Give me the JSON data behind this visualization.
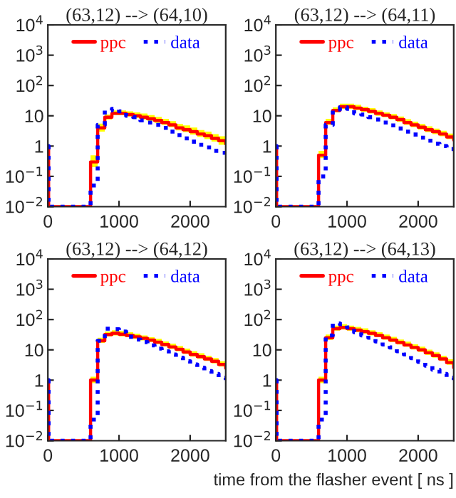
{
  "chart_data": [
    {
      "type": "step",
      "title": "(63,12) --> (64,10)",
      "log": "y",
      "legend": "top",
      "grid": false,
      "xlim": [
        0,
        2500
      ],
      "xticks": [
        0,
        1000,
        2000
      ],
      "ylim": [
        0.01,
        10000
      ],
      "yticks": [
        {
          "value": 0.01,
          "label": "10$^{−2}$"
        },
        {
          "value": 0.1,
          "label": "10$^{−1}$"
        },
        1,
        10,
        {
          "value": 100,
          "label": "10$^{2}$"
        },
        {
          "value": 1000,
          "label": "10$^{3}$"
        },
        {
          "value": 10000,
          "label": "10$^{4}$"
        }
      ],
      "x": [
        0,
        10,
        600,
        700,
        800,
        900,
        1000,
        1100,
        1200,
        1300,
        1400,
        1500,
        1600,
        1700,
        1800,
        1900,
        2000,
        2100,
        2200,
        2300,
        2400,
        2500
      ],
      "series": [
        {
          "name": "ppc",
          "color": "#ff0000",
          "line_style": "solid",
          "values": [
            1,
            0.01,
            0.3,
            4,
            9,
            12,
            12,
            11,
            10,
            9,
            8,
            7,
            6,
            5,
            4,
            3.5,
            3,
            2.5,
            2.2,
            1.8,
            1.5,
            1.2
          ],
          "lower": [
            null,
            null,
            0.2,
            3,
            7.5,
            10.5,
            10.5,
            9.5,
            8.5,
            7.5,
            6.7,
            5.8,
            5,
            4.2,
            3.3,
            2.9,
            2.4,
            2,
            1.7,
            1.4,
            1.1,
            0.9
          ],
          "upper": [
            null,
            null,
            0.5,
            5.5,
            11,
            15,
            15,
            14,
            13,
            12,
            10.5,
            9.2,
            8,
            6.7,
            5.4,
            4.8,
            4.1,
            3.4,
            3,
            2.5,
            2.1,
            1.7
          ]
        },
        {
          "name": "data",
          "color": "#0000ff",
          "line_style": "dotted",
          "values": [
            1,
            0.01,
            0.05,
            5,
            15,
            17,
            14,
            10,
            9,
            7,
            6,
            5,
            4,
            3,
            2.3,
            1.8,
            1.4,
            1.1,
            0.9,
            0.7,
            0.6,
            0.5
          ]
        }
      ]
    },
    {
      "type": "step",
      "title": "(63,12) --> (64,11)",
      "log": "y",
      "legend": "top",
      "grid": false,
      "xlim": [
        0,
        2500
      ],
      "xticks": [
        0,
        1000,
        2000
      ],
      "ylim": [
        0.01,
        10000
      ],
      "yticks": [
        {
          "value": 0.01,
          "label": "10$^{−2}$"
        },
        {
          "value": 0.1,
          "label": "10$^{−1}$"
        },
        1,
        10,
        {
          "value": 100,
          "label": "10$^{2}$"
        },
        {
          "value": 1000,
          "label": "10$^{3}$"
        },
        {
          "value": 10000,
          "label": "10$^{4}$"
        }
      ],
      "x": [
        0,
        10,
        600,
        700,
        800,
        900,
        1000,
        1100,
        1200,
        1300,
        1400,
        1500,
        1600,
        1700,
        1800,
        1900,
        2000,
        2100,
        2200,
        2300,
        2400,
        2500
      ],
      "series": [
        {
          "name": "ppc",
          "color": "#ff0000",
          "line_style": "solid",
          "values": [
            1,
            0.01,
            0.5,
            6,
            15,
            20,
            20,
            18,
            16,
            14,
            12,
            10.5,
            9,
            7.5,
            6,
            5,
            4.2,
            3.5,
            3,
            2.5,
            2,
            1.6
          ],
          "lower": [
            null,
            null,
            0.4,
            5,
            13,
            17,
            17,
            15.5,
            13.5,
            12,
            10,
            9,
            7.6,
            6.3,
            5,
            4.2,
            3.5,
            2.9,
            2.5,
            2.1,
            1.7,
            1.3
          ],
          "upper": [
            null,
            null,
            0.7,
            8,
            19,
            25,
            25,
            23,
            20,
            18,
            15,
            13,
            11.5,
            9.5,
            7.7,
            6.4,
            5.4,
            4.5,
            3.8,
            3.2,
            2.6,
            2.1
          ]
        },
        {
          "name": "data",
          "color": "#0000ff",
          "line_style": "dotted",
          "values": [
            1,
            0.01,
            0.1,
            5,
            16,
            19,
            17,
            12,
            11,
            9,
            7.5,
            6,
            4.8,
            3.8,
            3,
            2.4,
            1.9,
            1.5,
            1.2,
            1,
            0.8,
            0.6
          ]
        }
      ]
    },
    {
      "type": "step",
      "title": "(63,12) --> (64,12)",
      "log": "y",
      "legend": "top",
      "grid": false,
      "xlim": [
        0,
        2500
      ],
      "xticks": [
        0,
        1000,
        2000
      ],
      "ylim": [
        0.01,
        10000
      ],
      "yticks": [
        {
          "value": 0.01,
          "label": "10$^{−2}$"
        },
        {
          "value": 0.1,
          "label": "10$^{−1}$"
        },
        1,
        10,
        {
          "value": 100,
          "label": "10$^{2}$"
        },
        {
          "value": 1000,
          "label": "10$^{3}$"
        },
        {
          "value": 10000,
          "label": "10$^{4}$"
        }
      ],
      "x": [
        0,
        10,
        600,
        700,
        800,
        900,
        1000,
        1100,
        1200,
        1300,
        1400,
        1500,
        1600,
        1700,
        1800,
        1900,
        2000,
        2100,
        2200,
        2300,
        2400,
        2500
      ],
      "series": [
        {
          "name": "ppc",
          "color": "#ff0000",
          "line_style": "solid",
          "values": [
            1,
            0.01,
            1,
            20,
            32,
            35,
            33,
            30,
            27,
            24,
            21,
            18,
            15,
            12.5,
            10.5,
            8.5,
            7,
            6,
            5,
            4.2,
            3.3,
            2.5
          ],
          "lower": [
            null,
            null,
            0.8,
            17,
            28,
            30,
            28,
            26,
            23,
            20.5,
            18,
            15.5,
            13,
            10.7,
            9,
            7.3,
            6,
            5.1,
            4.3,
            3.6,
            2.8,
            2.1
          ],
          "upper": [
            null,
            null,
            1.3,
            25,
            40,
            44,
            42,
            38,
            34,
            30,
            26,
            23,
            19,
            16,
            13.5,
            11,
            9,
            7.7,
            6.4,
            5.4,
            4.2,
            3.2
          ]
        },
        {
          "name": "data",
          "color": "#0000ff",
          "line_style": "dotted",
          "values": [
            1,
            0.01,
            0.05,
            20,
            50,
            48,
            40,
            27,
            22,
            18,
            14,
            11,
            9,
            7,
            5.5,
            4.2,
            3.3,
            2.6,
            2,
            1.6,
            1.2,
            1
          ]
        }
      ]
    },
    {
      "type": "step",
      "title": "(63,12) --> (64,13)",
      "xlabel": "time from the flasher event [ ns ]",
      "log": "y",
      "legend": "top",
      "grid": false,
      "xlim": [
        0,
        2500
      ],
      "xticks": [
        0,
        1000,
        2000
      ],
      "ylim": [
        0.01,
        10000
      ],
      "yticks": [
        {
          "value": 0.01,
          "label": "10$^{−2}$"
        },
        {
          "value": 0.1,
          "label": "10$^{−1}$"
        },
        1,
        10,
        {
          "value": 100,
          "label": "10$^{2}$"
        },
        {
          "value": 1000,
          "label": "10$^{3}$"
        },
        {
          "value": 10000,
          "label": "10$^{4}$"
        }
      ],
      "x": [
        0,
        10,
        600,
        700,
        800,
        900,
        1000,
        1100,
        1200,
        1300,
        1400,
        1500,
        1600,
        1700,
        1800,
        1900,
        2000,
        2100,
        2200,
        2300,
        2400,
        2500
      ],
      "series": [
        {
          "name": "ppc",
          "color": "#ff0000",
          "line_style": "solid",
          "values": [
            1,
            0.01,
            1,
            25,
            50,
            55,
            50,
            45,
            40,
            35,
            30,
            25,
            21,
            17.5,
            14.5,
            12,
            10,
            8,
            6.5,
            5,
            3.8,
            2.6
          ],
          "lower": [
            null,
            null,
            0.8,
            21,
            43,
            47,
            43,
            38,
            34,
            30,
            26,
            21.5,
            18,
            15,
            12.5,
            10.3,
            8.5,
            6.8,
            5.5,
            4.3,
            3.2,
            2.2
          ],
          "upper": [
            null,
            null,
            1.3,
            32,
            63,
            70,
            63,
            57,
            51,
            44,
            38,
            32,
            27,
            22,
            18.5,
            15.2,
            12.7,
            10.2,
            8.3,
            6.4,
            4.9,
            3.4
          ]
        },
        {
          "name": "data",
          "color": "#0000ff",
          "line_style": "dotted",
          "values": [
            1,
            0.01,
            0.05,
            30,
            75,
            70,
            55,
            38,
            30,
            25,
            19,
            15,
            12,
            9,
            7,
            5.3,
            4,
            3,
            2.2,
            1.6,
            1.2,
            1
          ]
        }
      ]
    }
  ]
}
